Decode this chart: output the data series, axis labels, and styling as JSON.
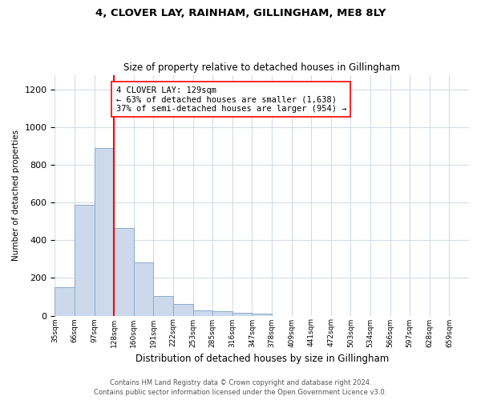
{
  "title1": "4, CLOVER LAY, RAINHAM, GILLINGHAM, ME8 8LY",
  "title2": "Size of property relative to detached houses in Gillingham",
  "xlabel": "Distribution of detached houses by size in Gillingham",
  "ylabel": "Number of detached properties",
  "bar_values": [
    150,
    590,
    893,
    465,
    283,
    105,
    62,
    28,
    22,
    15,
    10,
    0,
    0,
    0,
    0,
    0,
    0,
    0,
    0,
    0,
    0
  ],
  "tick_labels": [
    "35sqm",
    "66sqm",
    "97sqm",
    "128sqm",
    "160sqm",
    "191sqm",
    "222sqm",
    "253sqm",
    "285sqm",
    "316sqm",
    "347sqm",
    "378sqm",
    "409sqm",
    "441sqm",
    "472sqm",
    "503sqm",
    "534sqm",
    "566sqm",
    "597sqm",
    "628sqm",
    "659sqm"
  ],
  "bar_color": "#ccd9ec",
  "bar_edge_color": "#8aaac8",
  "vline_x": 3,
  "vline_color": "red",
  "annotation_text": "4 CLOVER LAY: 129sqm\n← 63% of detached houses are smaller (1,638)\n37% of semi-detached houses are larger (954) →",
  "annotation_box_color": "white",
  "annotation_box_edge_color": "red",
  "ylim": [
    0,
    1280
  ],
  "yticks": [
    0,
    200,
    400,
    600,
    800,
    1000,
    1200
  ],
  "footer1": "Contains HM Land Registry data © Crown copyright and database right 2024.",
  "footer2": "Contains public sector information licensed under the Open Government Licence v3.0.",
  "bg_color": "white",
  "grid_color": "#d4dce8"
}
